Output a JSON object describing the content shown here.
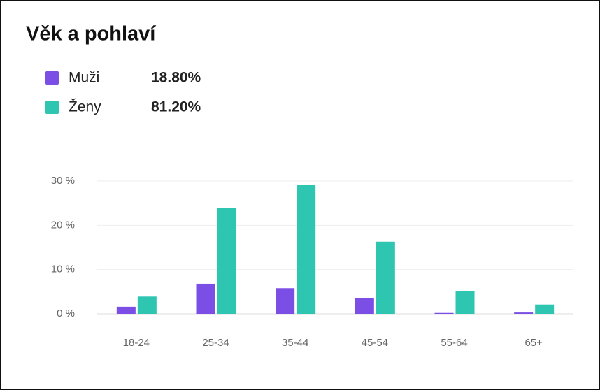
{
  "chart_data": {
    "type": "bar",
    "title": "Věk a pohlaví",
    "categories": [
      "18-24",
      "25-34",
      "35-44",
      "45-54",
      "55-64",
      "65+"
    ],
    "series": [
      {
        "name": "Muži",
        "share": "18.80%",
        "color": "#7b4fe6",
        "values": [
          1.6,
          6.8,
          5.8,
          3.6,
          0.2,
          0.3
        ]
      },
      {
        "name": "Ženy",
        "share": "81.20%",
        "color": "#2ec5b1",
        "values": [
          3.9,
          24.0,
          29.2,
          16.3,
          5.2,
          2.1
        ]
      }
    ],
    "ylim": [
      0,
      30
    ],
    "yticks": [
      {
        "value": 0,
        "label": "0 %"
      },
      {
        "value": 10,
        "label": "10 %"
      },
      {
        "value": 20,
        "label": "20 %"
      },
      {
        "value": 30,
        "label": "30 %"
      }
    ],
    "grid": true
  }
}
